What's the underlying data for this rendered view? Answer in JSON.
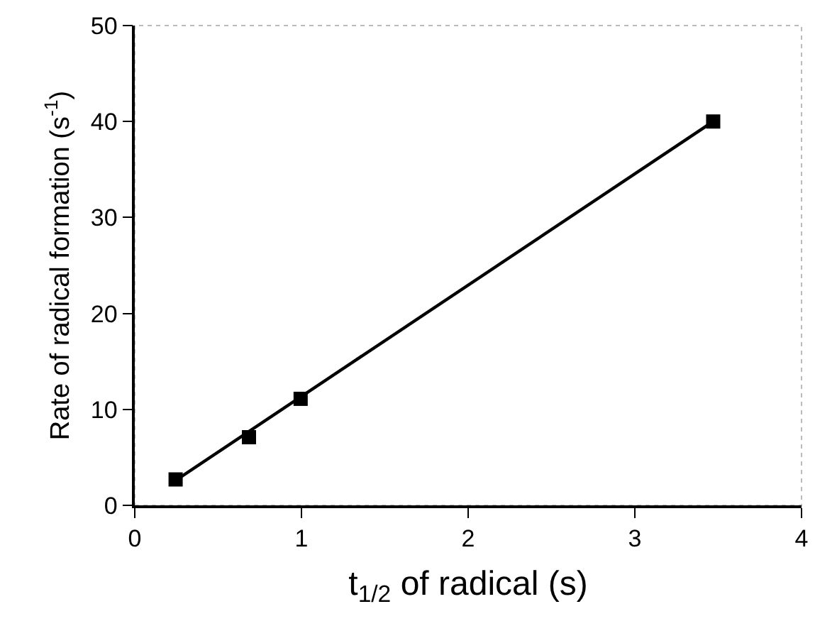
{
  "chart_data": {
    "type": "scatter",
    "xlabel": "t$_{1/2}$ of radical (s)",
    "ylabel": "Rate of radical formation (s$^{-1}$)",
    "xlim": [
      0,
      4
    ],
    "xticks": [
      0,
      1,
      2,
      3,
      4
    ],
    "ylim": [
      0,
      50
    ],
    "yticks": [
      0,
      10,
      20,
      30,
      40,
      50
    ],
    "grid": false,
    "series": [
      {
        "color": "#000000",
        "marker": "square",
        "x": [
          0.245,
          0.685,
          0.995,
          3.47
        ],
        "values": [
          2.7,
          7.1,
          11.1,
          40.0
        ]
      },
      {
        "type": "line",
        "color": "#000000",
        "line_style": "solid",
        "x": [
          0.245,
          3.47
        ],
        "values": [
          2.6,
          40.0
        ]
      }
    ]
  }
}
